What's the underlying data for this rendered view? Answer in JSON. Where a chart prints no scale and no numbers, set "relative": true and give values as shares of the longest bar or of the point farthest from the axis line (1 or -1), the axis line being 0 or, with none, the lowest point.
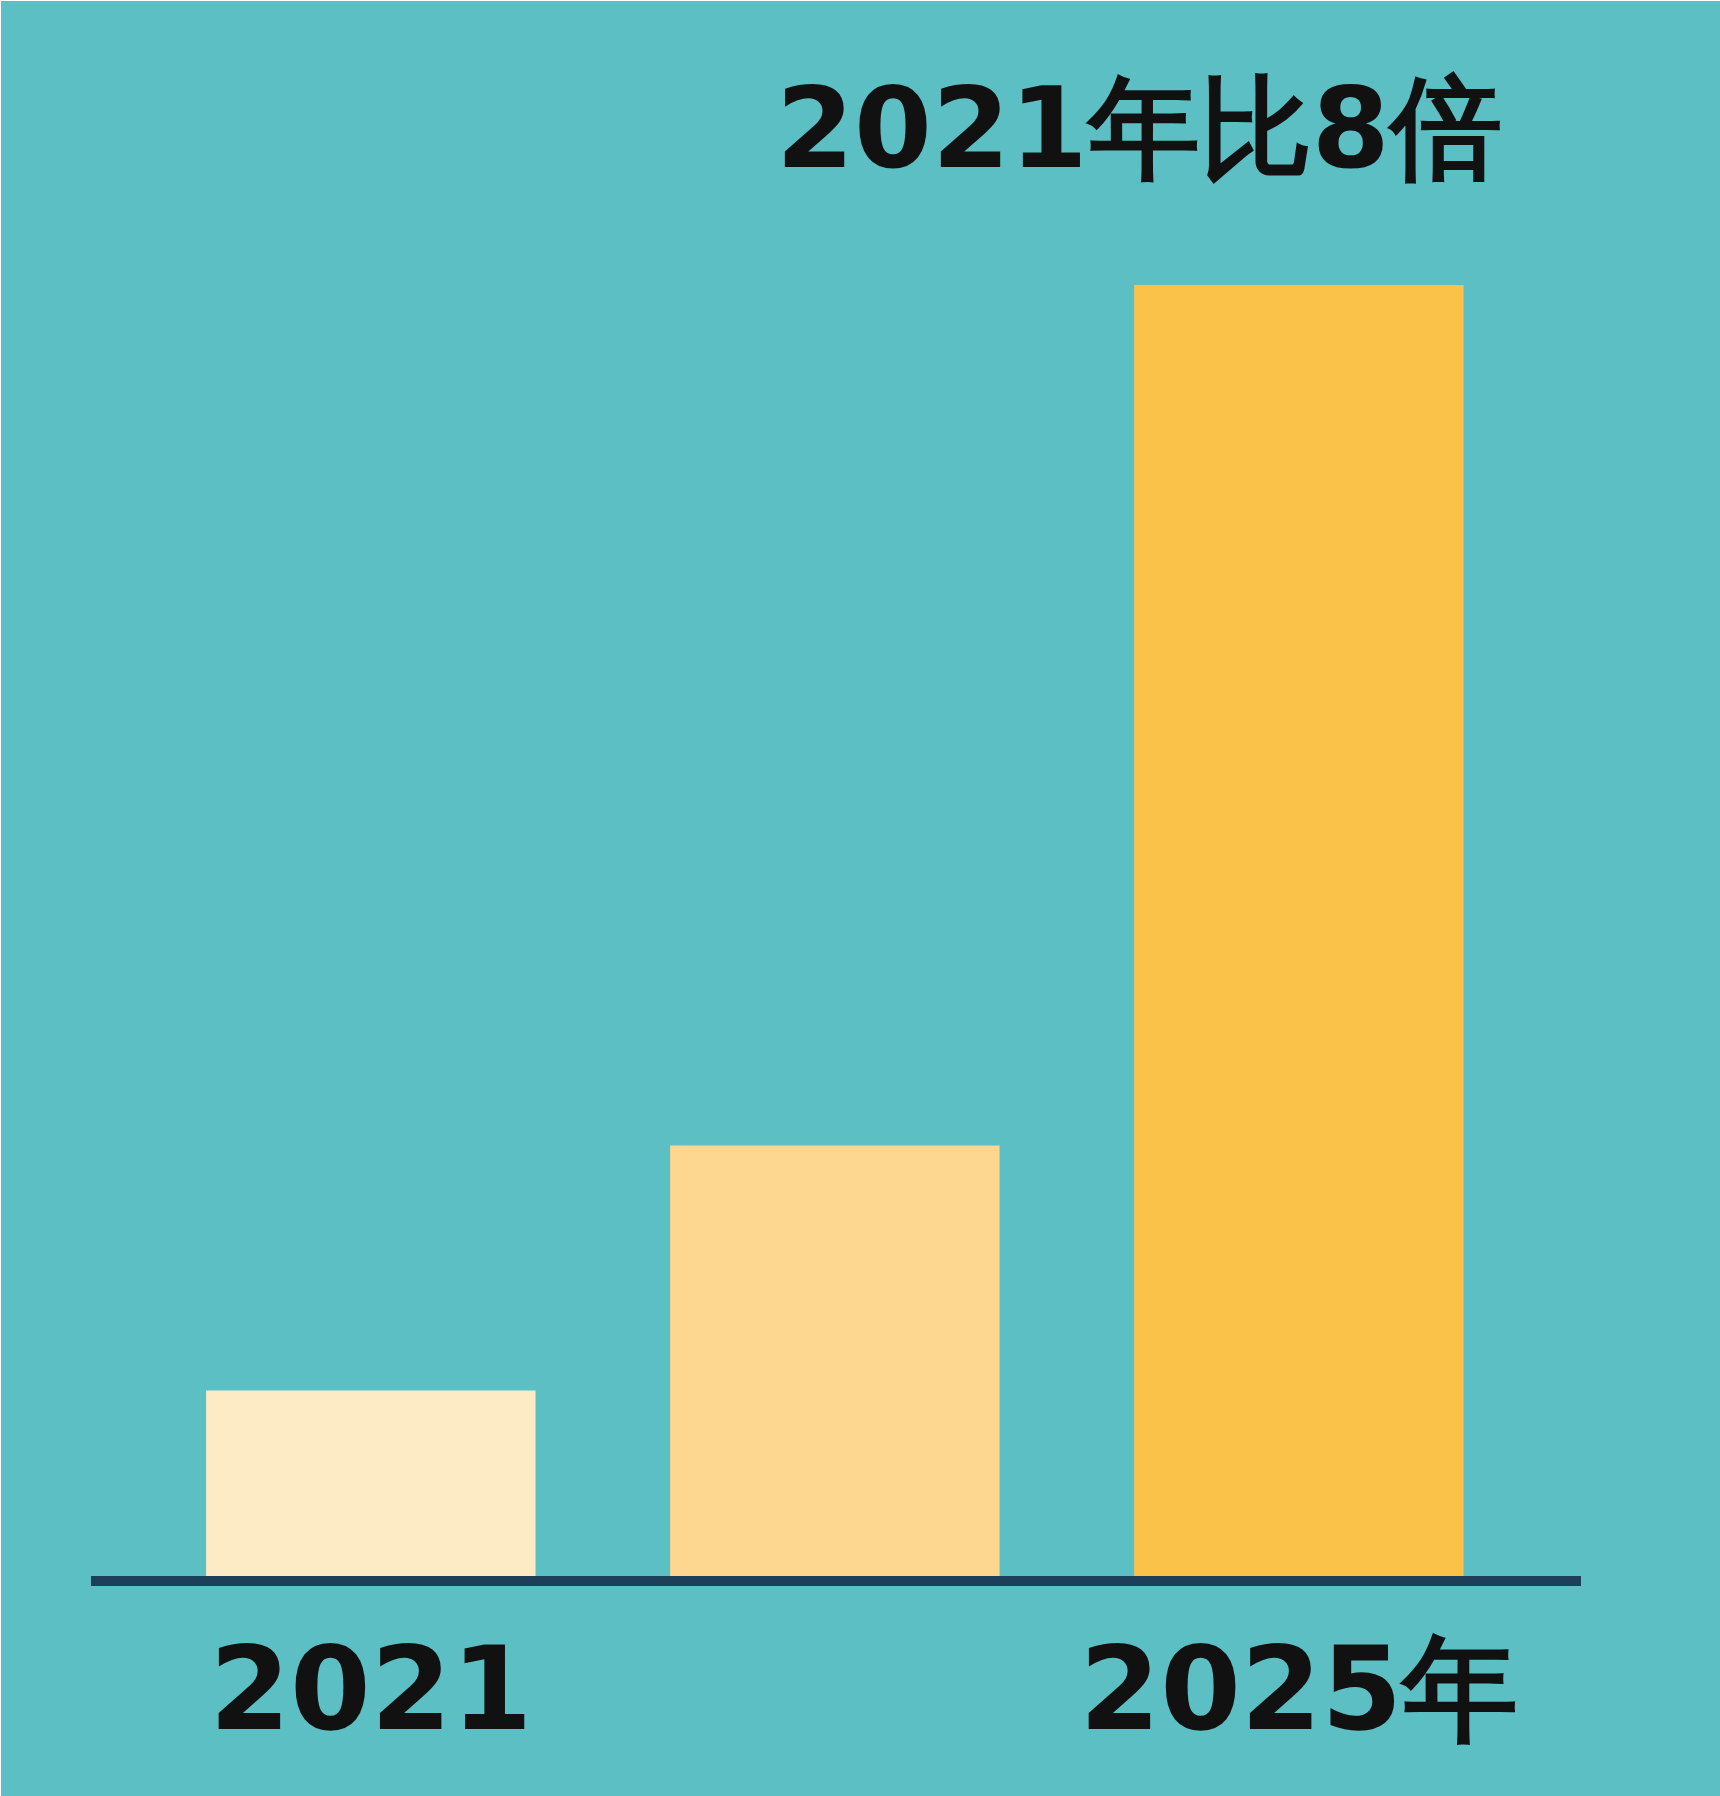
{
  "chart_data": {
    "type": "bar",
    "relative": true,
    "categories": [
      "2021",
      null,
      "2025年"
    ],
    "values": [
      0.147,
      0.336,
      1
    ],
    "colors": [
      "#fdebc6",
      "#fdd68f",
      "#fbc249"
    ],
    "annotations": [
      {
        "text": "2021年比8倍",
        "x": "2025年",
        "y": 1
      }
    ],
    "grid": false
  }
}
